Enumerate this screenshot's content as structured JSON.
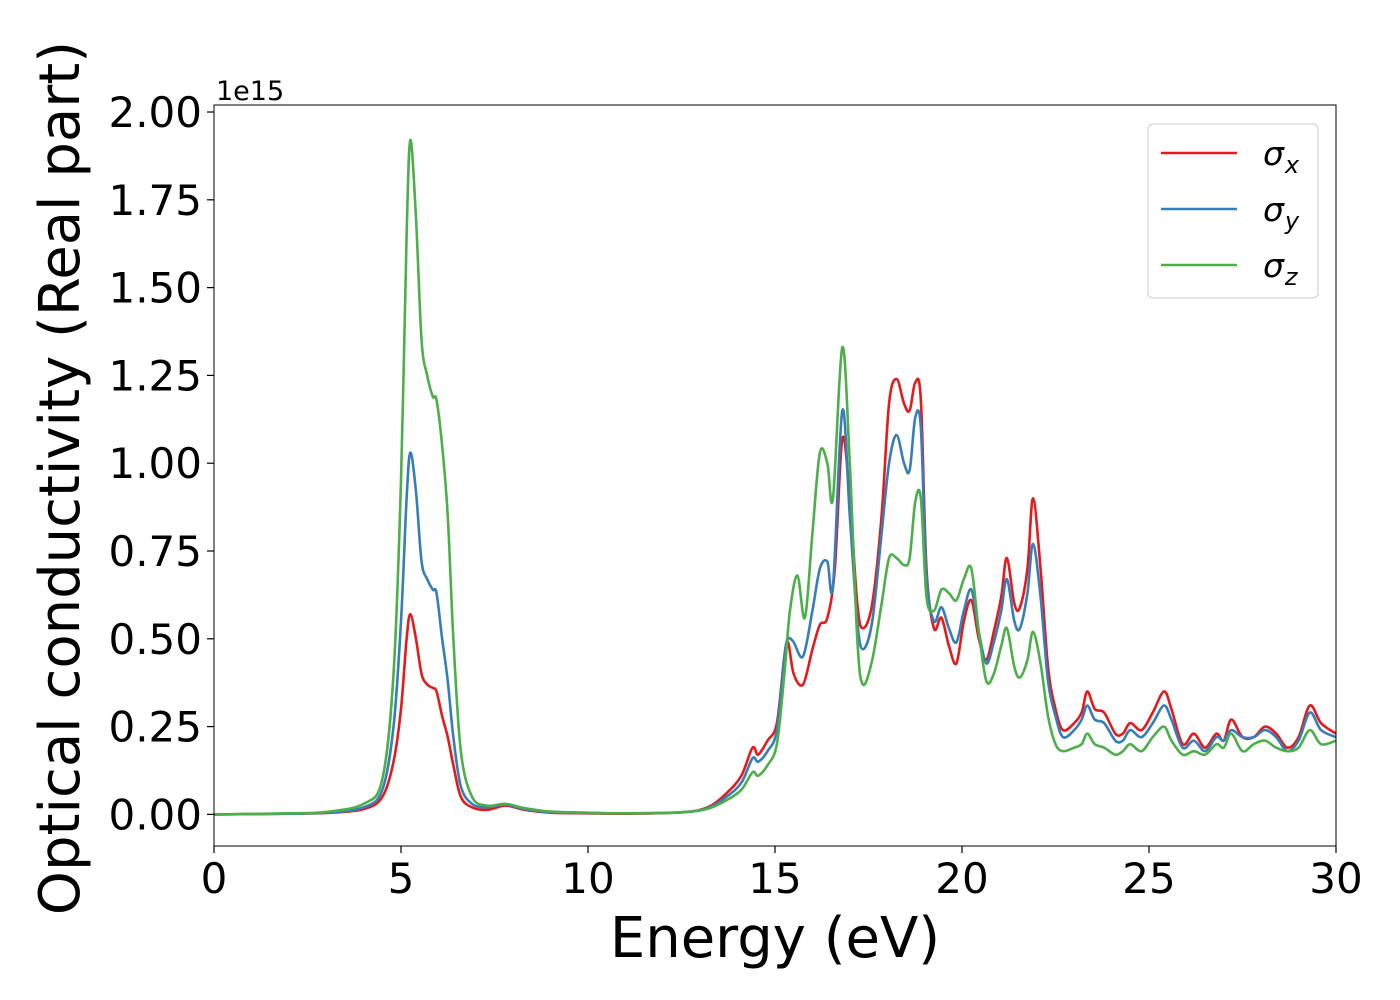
{
  "chart_data": {
    "type": "line",
    "title": "",
    "xlabel": "Energy (eV)",
    "ylabel": "Optical conductivity (Real part)",
    "offset_label": "1e15",
    "xlim": [
      0,
      30
    ],
    "ylim": [
      -0.09,
      2.02
    ],
    "x_ticks": [
      0,
      5,
      10,
      15,
      20,
      25,
      30
    ],
    "x_tick_labels": [
      "0",
      "5",
      "10",
      "15",
      "20",
      "25",
      "30"
    ],
    "y_ticks": [
      0.0,
      0.25,
      0.5,
      0.75,
      1.0,
      1.25,
      1.5,
      1.75,
      2.0
    ],
    "y_tick_labels": [
      "0.00",
      "0.25",
      "0.50",
      "0.75",
      "1.00",
      "1.25",
      "1.50",
      "1.75",
      "2.00"
    ],
    "grid": false,
    "legend_position": "top-right",
    "series": [
      {
        "name": "σx",
        "legend_base": "σ",
        "legend_sub": "x",
        "color": "#e41a1c",
        "points": [
          [
            0,
            0
          ],
          [
            2,
            0.002
          ],
          [
            3,
            0.004
          ],
          [
            4,
            0.015
          ],
          [
            4.5,
            0.05
          ],
          [
            4.8,
            0.15
          ],
          [
            5.0,
            0.3
          ],
          [
            5.15,
            0.5
          ],
          [
            5.25,
            0.57
          ],
          [
            5.4,
            0.5
          ],
          [
            5.55,
            0.4
          ],
          [
            5.7,
            0.37
          ],
          [
            5.85,
            0.36
          ],
          [
            5.95,
            0.35
          ],
          [
            6.1,
            0.28
          ],
          [
            6.25,
            0.22
          ],
          [
            6.4,
            0.14
          ],
          [
            6.6,
            0.05
          ],
          [
            6.9,
            0.02
          ],
          [
            7.3,
            0.013
          ],
          [
            7.8,
            0.025
          ],
          [
            8.3,
            0.013
          ],
          [
            9,
            0.005
          ],
          [
            10,
            0.003
          ],
          [
            11,
            0.002
          ],
          [
            12.5,
            0.006
          ],
          [
            13.2,
            0.02
          ],
          [
            13.7,
            0.06
          ],
          [
            14.1,
            0.11
          ],
          [
            14.4,
            0.19
          ],
          [
            14.55,
            0.17
          ],
          [
            14.8,
            0.21
          ],
          [
            15.05,
            0.26
          ],
          [
            15.25,
            0.45
          ],
          [
            15.35,
            0.49
          ],
          [
            15.5,
            0.4
          ],
          [
            15.75,
            0.37
          ],
          [
            16.0,
            0.47
          ],
          [
            16.2,
            0.54
          ],
          [
            16.4,
            0.56
          ],
          [
            16.6,
            0.7
          ],
          [
            16.8,
            1.07
          ],
          [
            17.0,
            0.9
          ],
          [
            17.2,
            0.6
          ],
          [
            17.35,
            0.53
          ],
          [
            17.6,
            0.6
          ],
          [
            17.85,
            0.85
          ],
          [
            18.05,
            1.17
          ],
          [
            18.25,
            1.24
          ],
          [
            18.45,
            1.17
          ],
          [
            18.6,
            1.15
          ],
          [
            18.75,
            1.23
          ],
          [
            18.9,
            1.18
          ],
          [
            19.05,
            0.7
          ],
          [
            19.25,
            0.53
          ],
          [
            19.45,
            0.56
          ],
          [
            19.65,
            0.48
          ],
          [
            19.85,
            0.43
          ],
          [
            20.05,
            0.55
          ],
          [
            20.25,
            0.61
          ],
          [
            20.45,
            0.5
          ],
          [
            20.65,
            0.44
          ],
          [
            20.85,
            0.52
          ],
          [
            21.05,
            0.62
          ],
          [
            21.2,
            0.73
          ],
          [
            21.4,
            0.6
          ],
          [
            21.55,
            0.59
          ],
          [
            21.75,
            0.7
          ],
          [
            21.9,
            0.9
          ],
          [
            22.1,
            0.7
          ],
          [
            22.3,
            0.42
          ],
          [
            22.5,
            0.3
          ],
          [
            22.7,
            0.24
          ],
          [
            23.0,
            0.26
          ],
          [
            23.2,
            0.29
          ],
          [
            23.35,
            0.35
          ],
          [
            23.55,
            0.3
          ],
          [
            23.8,
            0.29
          ],
          [
            24.1,
            0.23
          ],
          [
            24.3,
            0.23
          ],
          [
            24.5,
            0.26
          ],
          [
            24.8,
            0.24
          ],
          [
            25.1,
            0.29
          ],
          [
            25.4,
            0.35
          ],
          [
            25.6,
            0.3
          ],
          [
            25.9,
            0.2
          ],
          [
            26.2,
            0.23
          ],
          [
            26.5,
            0.19
          ],
          [
            26.8,
            0.23
          ],
          [
            27.0,
            0.21
          ],
          [
            27.2,
            0.27
          ],
          [
            27.5,
            0.22
          ],
          [
            27.8,
            0.22
          ],
          [
            28.1,
            0.25
          ],
          [
            28.4,
            0.23
          ],
          [
            28.7,
            0.19
          ],
          [
            29.0,
            0.22
          ],
          [
            29.3,
            0.31
          ],
          [
            29.6,
            0.26
          ],
          [
            30,
            0.23
          ]
        ]
      },
      {
        "name": "σy",
        "legend_base": "σ",
        "legend_sub": "y",
        "color": "#377eb8",
        "points": [
          [
            0,
            0
          ],
          [
            2,
            0.002
          ],
          [
            3,
            0.005
          ],
          [
            4,
            0.02
          ],
          [
            4.5,
            0.07
          ],
          [
            4.8,
            0.25
          ],
          [
            5.0,
            0.55
          ],
          [
            5.15,
            0.9
          ],
          [
            5.25,
            1.03
          ],
          [
            5.4,
            0.92
          ],
          [
            5.55,
            0.72
          ],
          [
            5.7,
            0.67
          ],
          [
            5.85,
            0.64
          ],
          [
            5.95,
            0.63
          ],
          [
            6.1,
            0.5
          ],
          [
            6.25,
            0.38
          ],
          [
            6.4,
            0.22
          ],
          [
            6.6,
            0.08
          ],
          [
            6.9,
            0.03
          ],
          [
            7.3,
            0.02
          ],
          [
            7.8,
            0.028
          ],
          [
            8.3,
            0.015
          ],
          [
            9,
            0.006
          ],
          [
            10,
            0.004
          ],
          [
            11,
            0.003
          ],
          [
            12.5,
            0.006
          ],
          [
            13.2,
            0.018
          ],
          [
            13.7,
            0.05
          ],
          [
            14.1,
            0.09
          ],
          [
            14.4,
            0.16
          ],
          [
            14.55,
            0.15
          ],
          [
            14.8,
            0.18
          ],
          [
            15.05,
            0.24
          ],
          [
            15.25,
            0.45
          ],
          [
            15.35,
            0.5
          ],
          [
            15.5,
            0.49
          ],
          [
            15.75,
            0.45
          ],
          [
            16.0,
            0.58
          ],
          [
            16.2,
            0.7
          ],
          [
            16.4,
            0.72
          ],
          [
            16.55,
            0.65
          ],
          [
            16.8,
            1.15
          ],
          [
            17.0,
            0.85
          ],
          [
            17.2,
            0.55
          ],
          [
            17.35,
            0.47
          ],
          [
            17.6,
            0.55
          ],
          [
            17.85,
            0.8
          ],
          [
            18.05,
            1.0
          ],
          [
            18.25,
            1.08
          ],
          [
            18.45,
            1.0
          ],
          [
            18.6,
            0.98
          ],
          [
            18.75,
            1.13
          ],
          [
            18.9,
            1.1
          ],
          [
            19.05,
            0.68
          ],
          [
            19.25,
            0.55
          ],
          [
            19.45,
            0.59
          ],
          [
            19.65,
            0.53
          ],
          [
            19.85,
            0.49
          ],
          [
            20.05,
            0.58
          ],
          [
            20.25,
            0.64
          ],
          [
            20.45,
            0.52
          ],
          [
            20.65,
            0.43
          ],
          [
            20.85,
            0.49
          ],
          [
            21.05,
            0.58
          ],
          [
            21.2,
            0.67
          ],
          [
            21.4,
            0.55
          ],
          [
            21.55,
            0.53
          ],
          [
            21.75,
            0.63
          ],
          [
            21.9,
            0.77
          ],
          [
            22.1,
            0.62
          ],
          [
            22.3,
            0.38
          ],
          [
            22.5,
            0.28
          ],
          [
            22.7,
            0.22
          ],
          [
            23.0,
            0.24
          ],
          [
            23.2,
            0.27
          ],
          [
            23.35,
            0.31
          ],
          [
            23.55,
            0.27
          ],
          [
            23.8,
            0.26
          ],
          [
            24.1,
            0.21
          ],
          [
            24.3,
            0.21
          ],
          [
            24.5,
            0.24
          ],
          [
            24.8,
            0.22
          ],
          [
            25.1,
            0.26
          ],
          [
            25.4,
            0.31
          ],
          [
            25.6,
            0.27
          ],
          [
            25.9,
            0.19
          ],
          [
            26.2,
            0.21
          ],
          [
            26.5,
            0.18
          ],
          [
            26.8,
            0.22
          ],
          [
            27.0,
            0.21
          ],
          [
            27.2,
            0.24
          ],
          [
            27.5,
            0.22
          ],
          [
            27.8,
            0.22
          ],
          [
            28.1,
            0.24
          ],
          [
            28.4,
            0.22
          ],
          [
            28.7,
            0.18
          ],
          [
            29.0,
            0.21
          ],
          [
            29.3,
            0.29
          ],
          [
            29.6,
            0.24
          ],
          [
            30,
            0.22
          ]
        ]
      },
      {
        "name": "σz",
        "legend_base": "σ",
        "legend_sub": "z",
        "color": "#4daf4a",
        "points": [
          [
            0,
            0
          ],
          [
            2,
            0.003
          ],
          [
            3,
            0.007
          ],
          [
            4,
            0.03
          ],
          [
            4.5,
            0.1
          ],
          [
            4.8,
            0.4
          ],
          [
            5.0,
            0.95
          ],
          [
            5.15,
            1.65
          ],
          [
            5.25,
            1.92
          ],
          [
            5.4,
            1.7
          ],
          [
            5.55,
            1.35
          ],
          [
            5.7,
            1.25
          ],
          [
            5.85,
            1.19
          ],
          [
            5.95,
            1.18
          ],
          [
            6.1,
            1.05
          ],
          [
            6.25,
            0.85
          ],
          [
            6.4,
            0.5
          ],
          [
            6.6,
            0.18
          ],
          [
            6.9,
            0.05
          ],
          [
            7.3,
            0.025
          ],
          [
            7.8,
            0.03
          ],
          [
            8.3,
            0.018
          ],
          [
            9,
            0.008
          ],
          [
            10,
            0.005
          ],
          [
            11,
            0.003
          ],
          [
            12.5,
            0.006
          ],
          [
            13.2,
            0.016
          ],
          [
            13.7,
            0.04
          ],
          [
            14.1,
            0.07
          ],
          [
            14.4,
            0.12
          ],
          [
            14.55,
            0.11
          ],
          [
            14.8,
            0.14
          ],
          [
            15.05,
            0.2
          ],
          [
            15.25,
            0.4
          ],
          [
            15.4,
            0.58
          ],
          [
            15.6,
            0.68
          ],
          [
            15.8,
            0.56
          ],
          [
            16.0,
            0.8
          ],
          [
            16.2,
            1.03
          ],
          [
            16.4,
            1.0
          ],
          [
            16.55,
            0.9
          ],
          [
            16.8,
            1.33
          ],
          [
            17.0,
            1.0
          ],
          [
            17.2,
            0.5
          ],
          [
            17.35,
            0.37
          ],
          [
            17.6,
            0.44
          ],
          [
            17.85,
            0.6
          ],
          [
            18.05,
            0.73
          ],
          [
            18.25,
            0.73
          ],
          [
            18.45,
            0.71
          ],
          [
            18.6,
            0.73
          ],
          [
            18.75,
            0.89
          ],
          [
            18.9,
            0.9
          ],
          [
            19.05,
            0.62
          ],
          [
            19.25,
            0.58
          ],
          [
            19.45,
            0.64
          ],
          [
            19.65,
            0.63
          ],
          [
            19.85,
            0.61
          ],
          [
            20.05,
            0.67
          ],
          [
            20.25,
            0.7
          ],
          [
            20.45,
            0.52
          ],
          [
            20.65,
            0.38
          ],
          [
            20.85,
            0.4
          ],
          [
            21.05,
            0.48
          ],
          [
            21.2,
            0.53
          ],
          [
            21.4,
            0.42
          ],
          [
            21.55,
            0.39
          ],
          [
            21.75,
            0.44
          ],
          [
            21.9,
            0.52
          ],
          [
            22.1,
            0.43
          ],
          [
            22.3,
            0.28
          ],
          [
            22.5,
            0.2
          ],
          [
            22.7,
            0.18
          ],
          [
            23.0,
            0.19
          ],
          [
            23.2,
            0.2
          ],
          [
            23.35,
            0.23
          ],
          [
            23.55,
            0.2
          ],
          [
            23.8,
            0.19
          ],
          [
            24.1,
            0.17
          ],
          [
            24.3,
            0.18
          ],
          [
            24.5,
            0.2
          ],
          [
            24.8,
            0.18
          ],
          [
            25.1,
            0.22
          ],
          [
            25.4,
            0.25
          ],
          [
            25.6,
            0.21
          ],
          [
            25.9,
            0.17
          ],
          [
            26.2,
            0.18
          ],
          [
            26.5,
            0.17
          ],
          [
            26.8,
            0.2
          ],
          [
            27.0,
            0.19
          ],
          [
            27.2,
            0.23
          ],
          [
            27.5,
            0.18
          ],
          [
            27.8,
            0.2
          ],
          [
            28.1,
            0.21
          ],
          [
            28.4,
            0.19
          ],
          [
            28.7,
            0.18
          ],
          [
            29.0,
            0.19
          ],
          [
            29.3,
            0.24
          ],
          [
            29.6,
            0.2
          ],
          [
            30,
            0.21
          ]
        ]
      }
    ]
  }
}
